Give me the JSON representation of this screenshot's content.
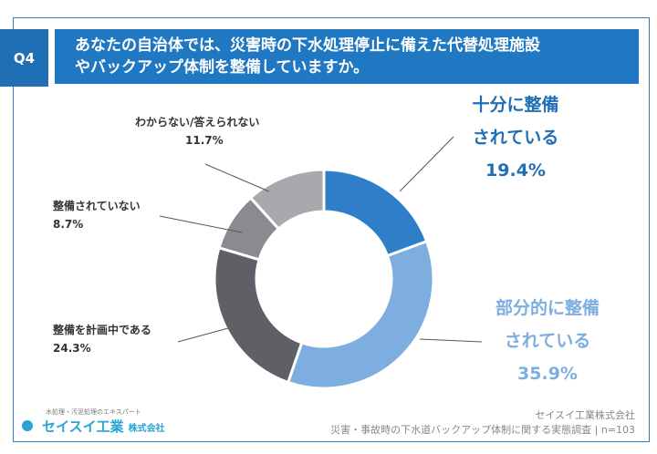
{
  "question": {
    "number": "Q4",
    "text_line1": "あなたの自治体では、災害時の下水処理停止に備えた代替処理施設",
    "text_line2": "やバックアップ体制を整備していますか。"
  },
  "chart_data": {
    "type": "pie",
    "donut": true,
    "direction": "clockwise from top",
    "categories": [
      "十分に整備されている",
      "部分的に整備されている",
      "整備を計画中である",
      "整備されていない",
      "わからない/答えられない"
    ],
    "values": [
      19.4,
      35.9,
      24.3,
      8.7,
      11.7
    ],
    "unit": "%",
    "colors": [
      "#2f7fc8",
      "#7eaee0",
      "#5f5f66",
      "#8a8a90",
      "#a9a9ad"
    ]
  },
  "labels": [
    {
      "l1": "十分に整備",
      "l2": "されている",
      "pct": "19.4%"
    },
    {
      "l1": "部分的に整備",
      "l2": "されている",
      "pct": "35.9%"
    },
    {
      "l1": "整備を計画中である",
      "pct": "24.3%"
    },
    {
      "l1": "整備されていない",
      "pct": "8.7%"
    },
    {
      "l1": "わからない/答えられない",
      "pct": "11.7%"
    }
  ],
  "footer": {
    "logo_tagline": "水処理・汚泥処理のエキスパート",
    "logo_name": "セイスイ工業",
    "logo_suffix": "株式会社",
    "company": "セイスイ工業株式会社",
    "survey": "災害・事故時の下水道バックアップ体制に関する実態調査",
    "n": "n=103"
  }
}
